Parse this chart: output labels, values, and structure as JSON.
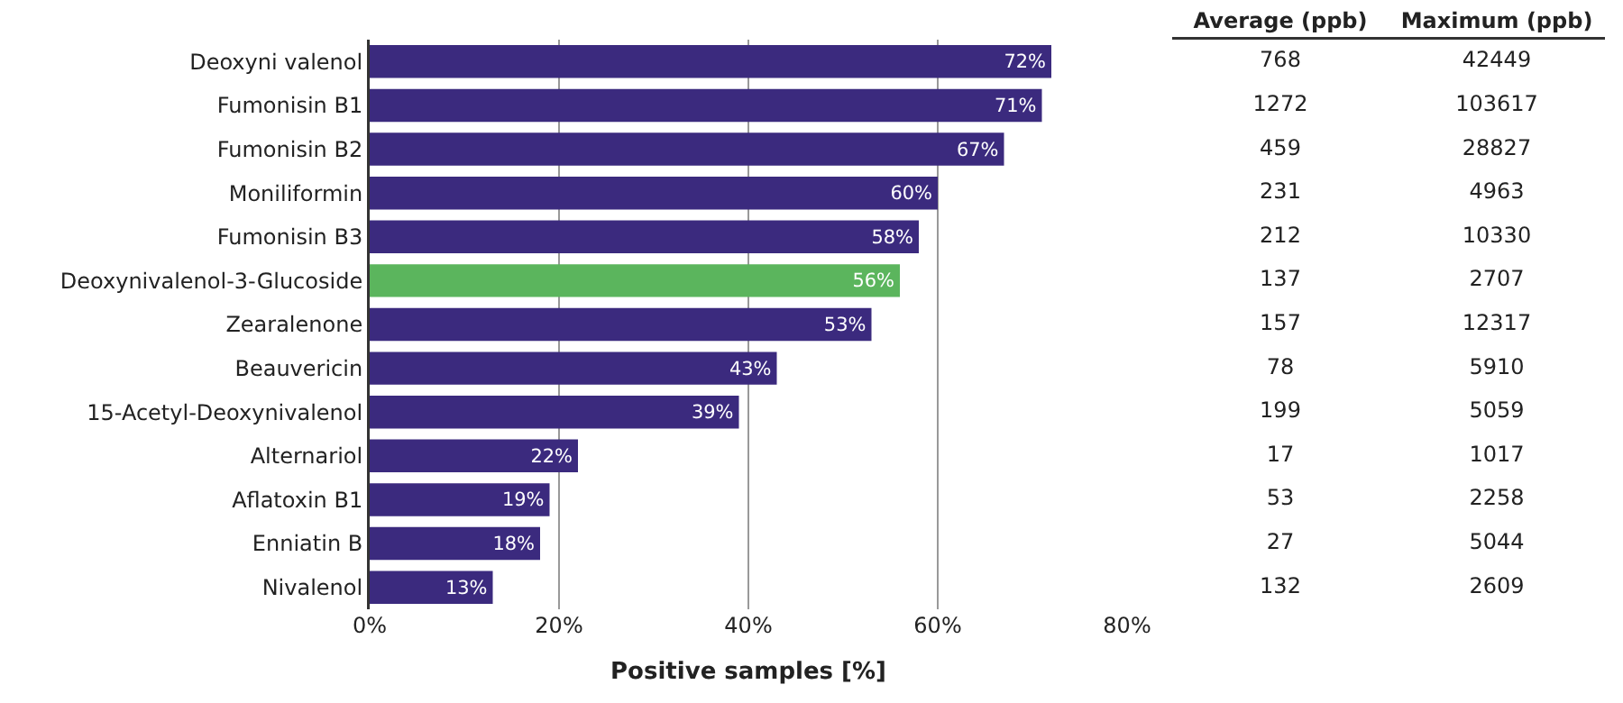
{
  "chart_data": [
    {
      "type": "bar",
      "orientation": "horizontal",
      "xlabel": "Positive samples [%]",
      "categories": [
        "Deoxyni valenol",
        "Fumonisin B1",
        "Fumonisin B2",
        "Moniliformin",
        "Fumonisin B3",
        "Deoxynivalenol-3-Glucoside",
        "Zearalenone",
        "Beauvericin",
        "15-Acetyl-Deoxynivalenol",
        "Alternariol",
        "Aflatoxin B1",
        "Enniatin B",
        "Nivalenol"
      ],
      "values": [
        72,
        71,
        67,
        60,
        58,
        56,
        53,
        43,
        39,
        22,
        19,
        18,
        13
      ],
      "colors": [
        "#3b2a7e",
        "#3b2a7e",
        "#3b2a7e",
        "#3b2a7e",
        "#3b2a7e",
        "#5bb55d",
        "#3b2a7e",
        "#3b2a7e",
        "#3b2a7e",
        "#3b2a7e",
        "#3b2a7e",
        "#3b2a7e",
        "#3b2a7e"
      ],
      "value_labels": [
        "72%",
        "71%",
        "67%",
        "60%",
        "58%",
        "56%",
        "53%",
        "43%",
        "39%",
        "22%",
        "19%",
        "18%",
        "13%"
      ],
      "xlim": [
        0,
        80
      ],
      "xticks": [
        {
          "value": 0,
          "label": "0%"
        },
        {
          "value": 20,
          "label": "20%"
        },
        {
          "value": 40,
          "label": "40%"
        },
        {
          "value": 60,
          "label": "60%"
        },
        {
          "value": 80,
          "label": "80%"
        }
      ],
      "grid": "x",
      "legend": false
    },
    {
      "type": "other",
      "categories": [
        "Average (ppb)",
        "Maximum (ppb)"
      ],
      "annotations": [
        "768",
        "42449",
        "1272",
        "103617",
        "459",
        "28827",
        "231",
        "4963",
        "212",
        "10330",
        "137",
        "2707",
        "157",
        "12317",
        "78",
        "5910",
        "199",
        "5059",
        "17",
        "1017",
        "53",
        "2258",
        "27",
        "5044",
        "132",
        "2609"
      ]
    }
  ]
}
